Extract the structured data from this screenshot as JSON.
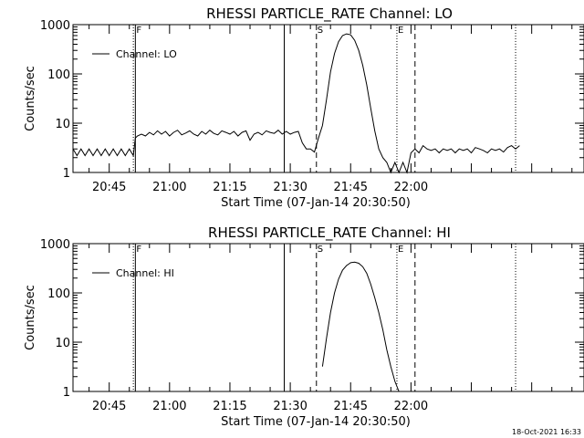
{
  "footer": {
    "timestamp": "18-Oct-2021 16:33"
  },
  "chart_data": [
    {
      "type": "line",
      "title": "RHESSI PARTICLE_RATE Channel: LO",
      "xlabel": "Start Time (07-Jan-14 20:30:50)",
      "ylabel": "Counts/sec",
      "yscale": "log",
      "ylim": [
        1,
        1000
      ],
      "xlim_min": [
        36,
        163
      ],
      "x_ticks_min": [
        45,
        60,
        75,
        90,
        105,
        120
      ],
      "x_tick_labels": [
        "20:45",
        "21:00",
        "21:15",
        "21:30",
        "21:45",
        "22:00"
      ],
      "y_ticks": [
        1,
        10,
        100,
        1000
      ],
      "y_tick_labels": [
        "1",
        "10",
        "100",
        "1000"
      ],
      "grid": false,
      "legend": {
        "position": "top-left",
        "entries": [
          "Channel: LO"
        ]
      },
      "markers": [
        {
          "x": 51,
          "style": "dotted"
        },
        {
          "x": 51.5,
          "style": "solid",
          "label": "F"
        },
        {
          "x": 88.5,
          "style": "solid"
        },
        {
          "x": 96.5,
          "style": "dashed",
          "label": "S"
        },
        {
          "x": 116.5,
          "style": "dotted",
          "label": "E"
        },
        {
          "x": 121,
          "style": "dashed"
        },
        {
          "x": 146,
          "style": "dotted"
        }
      ],
      "series": [
        {
          "name": "Channel: LO",
          "x": [
            36,
            37,
            38,
            39,
            40,
            41,
            42,
            43,
            44,
            45,
            46,
            47,
            48,
            49,
            50,
            51,
            51.5,
            52,
            53,
            54,
            55,
            56,
            57,
            58,
            59,
            60,
            61,
            62,
            63,
            64,
            65,
            66,
            67,
            68,
            69,
            70,
            71,
            72,
            73,
            74,
            75,
            76,
            77,
            78,
            79,
            80,
            81,
            82,
            83,
            84,
            85,
            86,
            87,
            88,
            89,
            90,
            91,
            92,
            93,
            94,
            95,
            96,
            97,
            98,
            99,
            100,
            101,
            102,
            103,
            104,
            105,
            106,
            107,
            108,
            109,
            110,
            111,
            112,
            113,
            114,
            115,
            116,
            117,
            118,
            119,
            120,
            121,
            122,
            123,
            124,
            125,
            126,
            127,
            128,
            129,
            130,
            131,
            132,
            133,
            134,
            135,
            136,
            137,
            138,
            139,
            140,
            141,
            142,
            143,
            144,
            145,
            146,
            147
          ],
          "y": [
            3.0,
            2.2,
            3.0,
            2.2,
            3.0,
            2.2,
            3.0,
            2.2,
            3.0,
            2.2,
            3.0,
            2.2,
            3.0,
            2.2,
            3.0,
            2.2,
            5.0,
            5.5,
            6.0,
            5.5,
            6.5,
            5.8,
            7.0,
            6.0,
            6.8,
            5.5,
            6.5,
            7.2,
            5.8,
            6.3,
            7.0,
            6.0,
            5.5,
            6.8,
            6.0,
            7.2,
            6.2,
            5.8,
            7.0,
            6.5,
            6.0,
            6.8,
            5.5,
            6.5,
            7.0,
            4.5,
            6.0,
            6.5,
            5.8,
            7.0,
            6.5,
            6.2,
            7.2,
            6.0,
            6.8,
            6.0,
            6.5,
            6.8,
            4.0,
            3.0,
            3.0,
            2.6,
            5.0,
            9.0,
            30,
            110,
            260,
            450,
            600,
            650,
            620,
            480,
            300,
            150,
            60,
            20,
            7.0,
            3.0,
            2.0,
            1.6,
            1.0,
            1.6,
            1.0,
            1.6,
            1.0,
            2.5,
            3.0,
            2.5,
            3.5,
            3.0,
            2.8,
            3.0,
            2.5,
            3.0,
            2.8,
            3.0,
            2.5,
            3.0,
            2.8,
            3.0,
            2.5,
            3.2,
            3.0,
            2.8,
            2.5,
            3.0,
            2.8,
            3.0,
            2.6,
            3.2,
            3.5,
            3.0,
            3.5
          ]
        }
      ]
    },
    {
      "type": "line",
      "title": "RHESSI PARTICLE_RATE Channel: HI",
      "xlabel": "Start Time (07-Jan-14 20:30:50)",
      "ylabel": "Counts/sec",
      "yscale": "log",
      "ylim": [
        1,
        1000
      ],
      "xlim_min": [
        36,
        163
      ],
      "x_ticks_min": [
        45,
        60,
        75,
        90,
        105,
        120
      ],
      "x_tick_labels": [
        "20:45",
        "21:00",
        "21:15",
        "21:30",
        "21:45",
        "22:00"
      ],
      "y_ticks": [
        1,
        10,
        100,
        1000
      ],
      "y_tick_labels": [
        "1",
        "10",
        "100",
        "1000"
      ],
      "grid": false,
      "legend": {
        "position": "top-left",
        "entries": [
          "Channel: HI"
        ]
      },
      "markers": [
        {
          "x": 51,
          "style": "dotted"
        },
        {
          "x": 51.5,
          "style": "solid",
          "label": "F"
        },
        {
          "x": 88.5,
          "style": "solid"
        },
        {
          "x": 96.5,
          "style": "dashed",
          "label": "S"
        },
        {
          "x": 116.5,
          "style": "dotted",
          "label": "E"
        },
        {
          "x": 121,
          "style": "dashed"
        },
        {
          "x": 146,
          "style": "dotted"
        }
      ],
      "series": [
        {
          "name": "Channel: HI",
          "x": [
            98,
            99,
            100,
            101,
            102,
            103,
            104,
            105,
            106,
            107,
            108,
            109,
            110,
            111,
            112,
            113,
            114,
            115,
            116,
            117
          ],
          "y": [
            3.2,
            12,
            40,
            100,
            190,
            290,
            360,
            410,
            420,
            400,
            340,
            250,
            150,
            80,
            40,
            18,
            7,
            3.2,
            1.6,
            1.0
          ]
        }
      ]
    }
  ]
}
